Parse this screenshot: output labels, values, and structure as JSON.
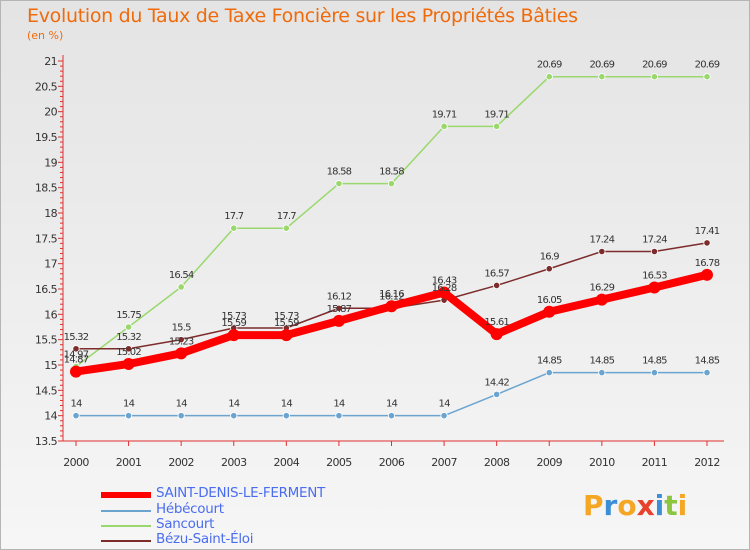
{
  "title": "Evolution du Taux de Taxe Foncière sur les Propriétés Bâties",
  "unit_label": "(en %)",
  "logo": {
    "letters": [
      "P",
      "r",
      "o",
      "x",
      "i",
      "t",
      "i"
    ],
    "colors": [
      "#f5a623",
      "#3a8fd6",
      "#f5a623",
      "#e8412c",
      "#3a8fd6",
      "#8cc63f",
      "#f5a623"
    ]
  },
  "chart_data": {
    "type": "line",
    "x": [
      "2000",
      "2001",
      "2002",
      "2003",
      "2004",
      "2005",
      "2006",
      "2007",
      "2008",
      "2009",
      "2010",
      "2011",
      "2012"
    ],
    "ylim": [
      13.5,
      21
    ],
    "yticks": [
      "13.5",
      "14",
      "14.5",
      "15",
      "15.5",
      "16",
      "16.5",
      "17",
      "17.5",
      "18",
      "18.5",
      "19",
      "19.5",
      "20",
      "20.5",
      "21"
    ],
    "grid": false,
    "legend_position": "bottom-left",
    "series": [
      {
        "name": "SAINT-DENIS-LE-FERMENT",
        "color": "#ff0000",
        "values": [
          14.87,
          15.02,
          15.23,
          15.59,
          15.59,
          15.87,
          16.16,
          16.43,
          15.61,
          16.05,
          16.29,
          16.53,
          16.78
        ],
        "labels": [
          "14.87",
          "15.02",
          "15.23",
          "15.59",
          "15.59",
          "15.87",
          "16.16",
          "16.43",
          "15.61",
          "16.05",
          "16.29",
          "16.53",
          "16.78"
        ]
      },
      {
        "name": "Hébécourt",
        "color": "#6aa4cf",
        "values": [
          14,
          14,
          14,
          14,
          14,
          14,
          14,
          14,
          14.42,
          14.85,
          14.85,
          14.85,
          14.85
        ],
        "labels": [
          "14",
          "14",
          "14",
          "14",
          "14",
          "14",
          "14",
          "14",
          "14.42",
          "14.85",
          "14.85",
          "14.85",
          "14.85"
        ]
      },
      {
        "name": "Sancourt",
        "color": "#9ad86e",
        "values": [
          14.97,
          15.75,
          16.54,
          17.7,
          17.7,
          18.58,
          18.58,
          19.71,
          19.71,
          20.69,
          20.69,
          20.69,
          20.69
        ],
        "labels": [
          "14.97",
          "15.75",
          "16.54",
          "17.7",
          "17.7",
          "18.58",
          "18.58",
          "19.71",
          "19.71",
          "20.69",
          "20.69",
          "20.69",
          "20.69"
        ]
      },
      {
        "name": "Bézu-Saint-Éloi",
        "color": "#7d2c2c",
        "values": [
          15.32,
          15.32,
          15.5,
          15.73,
          15.73,
          16.12,
          16.12,
          16.28,
          16.57,
          16.9,
          17.24,
          17.24,
          17.41
        ],
        "labels": [
          "15.32",
          "15.32",
          "15.5",
          "15.73",
          "15.73",
          "16.12",
          "16.12",
          "16.28",
          "16.57",
          "16.9",
          "17.24",
          "17.24",
          "17.41"
        ]
      }
    ]
  }
}
